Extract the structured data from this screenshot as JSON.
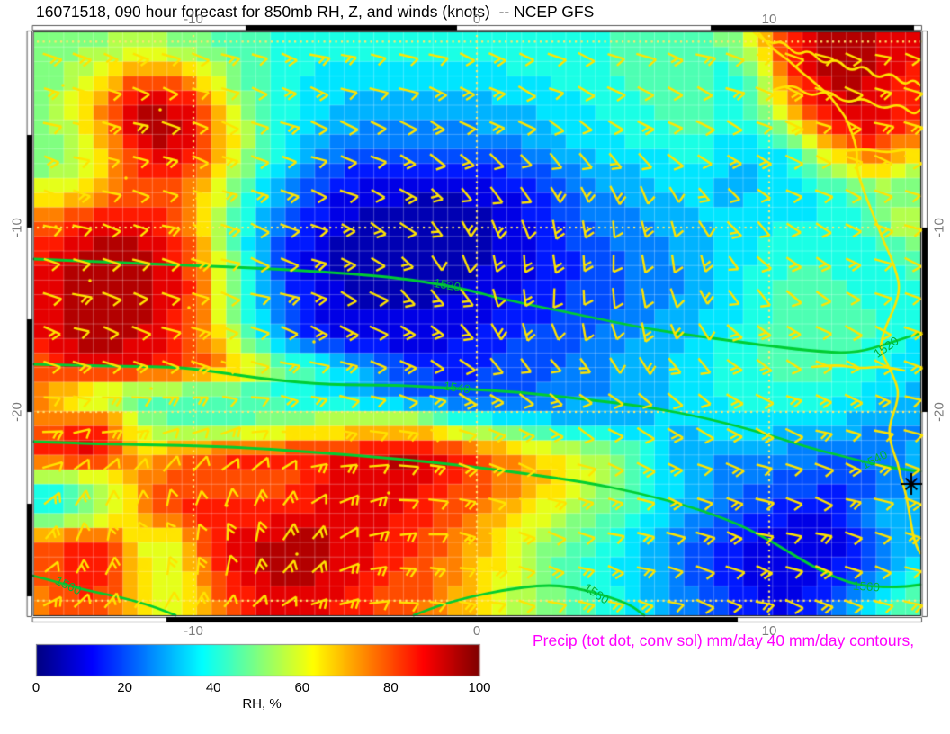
{
  "header": {
    "app": "GrADS-style forecast plot"
  },
  "caption": {
    "text": "Precip (tot dot, conv sol) mm/day 40 mm/day contours,",
    "color": "#ff00ff"
  },
  "colors": {
    "contour_green": "#00cd32",
    "contour_label_green": "#00b438",
    "coast_yellow": "#ffe400",
    "barb_yellow": "#ffe400",
    "gridline_dot": "#ffe670",
    "axis_label_gray": "#7a7a7a",
    "title_black": "#000000",
    "frame_black": "#000000",
    "marker_black": "#000000"
  },
  "chart_data": {
    "type": "heatmap",
    "title": "16071518, 090 hour forecast for 850mb RH, Z, and winds (knots)  -- NCEP GFS",
    "field": "850mb relative humidity",
    "overlays": [
      "geopotential height contours (m)",
      "wind barbs (knots)",
      "coastline",
      "precip contours"
    ],
    "lon_range": [
      -15.6,
      15.3
    ],
    "lat_range": [
      0.6,
      -31.0
    ],
    "x_ticks": [
      {
        "label": "-10",
        "f": 0.1797
      },
      {
        "label": "0",
        "f": 0.4995
      },
      {
        "label": "10",
        "f": 0.8294
      }
    ],
    "y_ticks": [
      {
        "label": "-10",
        "f": 0.3349
      },
      {
        "label": "-20",
        "f": 0.6512
      }
    ],
    "gridlines": {
      "x": [
        0.1797,
        0.4995,
        0.8294
      ],
      "y": [
        0.016,
        0.3349,
        0.6512,
        0.975
      ]
    },
    "rh_units": "%",
    "rh_level_step": 5,
    "rh_grid": [
      [
        48,
        50,
        52,
        54,
        52,
        50,
        46,
        43,
        41,
        40,
        40,
        40,
        41,
        41,
        41,
        41,
        40,
        40,
        41,
        42,
        44,
        45,
        46,
        48,
        65,
        85,
        92,
        95,
        92,
        88
      ],
      [
        50,
        56,
        66,
        78,
        76,
        66,
        52,
        44,
        40,
        37,
        35,
        35,
        35,
        35,
        35,
        36,
        37,
        39,
        40,
        42,
        44,
        46,
        48,
        38,
        50,
        78,
        92,
        95,
        92,
        86
      ],
      [
        52,
        62,
        78,
        92,
        94,
        86,
        62,
        48,
        40,
        35,
        32,
        30,
        30,
        30,
        30,
        31,
        32,
        34,
        37,
        39,
        42,
        44,
        46,
        40,
        48,
        70,
        88,
        93,
        90,
        84
      ],
      [
        50,
        58,
        74,
        93,
        95,
        88,
        68,
        50,
        38,
        32,
        27,
        25,
        25,
        25,
        25,
        27,
        29,
        32,
        35,
        37,
        40,
        42,
        44,
        36,
        40,
        48,
        70,
        85,
        88,
        80
      ],
      [
        48,
        55,
        68,
        84,
        89,
        84,
        64,
        46,
        34,
        26,
        20,
        17,
        15,
        15,
        15,
        17,
        21,
        25,
        29,
        32,
        34,
        36,
        38,
        32,
        33,
        35,
        50,
        65,
        72,
        60
      ],
      [
        62,
        66,
        72,
        80,
        80,
        72,
        54,
        38,
        27,
        18,
        11,
        9,
        8,
        8,
        8,
        10,
        14,
        19,
        24,
        27,
        30,
        32,
        34,
        30,
        32,
        35,
        38,
        42,
        48,
        45
      ],
      [
        78,
        86,
        90,
        88,
        82,
        70,
        50,
        34,
        21,
        13,
        8,
        6,
        5,
        5,
        5,
        7,
        11,
        16,
        21,
        24,
        27,
        30,
        32,
        34,
        36,
        38,
        36,
        40,
        45,
        60
      ],
      [
        86,
        93,
        95,
        95,
        90,
        76,
        52,
        32,
        18,
        10,
        5,
        4,
        4,
        4,
        5,
        7,
        10,
        14,
        18,
        21,
        24,
        27,
        31,
        34,
        38,
        42,
        40,
        38,
        42,
        45
      ],
      [
        88,
        95,
        95,
        95,
        92,
        80,
        56,
        34,
        19,
        10,
        6,
        5,
        4,
        5,
        7,
        9,
        12,
        15,
        18,
        20,
        23,
        26,
        30,
        34,
        39,
        44,
        46,
        42,
        40,
        42
      ],
      [
        90,
        95,
        95,
        95,
        90,
        78,
        56,
        36,
        21,
        12,
        8,
        7,
        7,
        8,
        10,
        12,
        15,
        17,
        20,
        22,
        25,
        28,
        31,
        35,
        40,
        45,
        48,
        45,
        42,
        40
      ],
      [
        88,
        94,
        95,
        92,
        88,
        80,
        60,
        42,
        25,
        15,
        10,
        9,
        9,
        10,
        12,
        15,
        18,
        20,
        22,
        25,
        28,
        30,
        34,
        38,
        42,
        46,
        48,
        46,
        42,
        38
      ],
      [
        80,
        88,
        90,
        88,
        85,
        80,
        74,
        62,
        50,
        44,
        35,
        28,
        20,
        16,
        16,
        18,
        20,
        22,
        25,
        28,
        30,
        32,
        36,
        40,
        42,
        44,
        44,
        42,
        38,
        34
      ],
      [
        72,
        58,
        48,
        44,
        43,
        42,
        42,
        41,
        38,
        36,
        32,
        28,
        22,
        19,
        18,
        20,
        22,
        24,
        26,
        28,
        30,
        32,
        35,
        38,
        40,
        41,
        40,
        38,
        35,
        31
      ],
      [
        76,
        84,
        80,
        58,
        46,
        45,
        46,
        50,
        55,
        58,
        60,
        63,
        65,
        58,
        48,
        42,
        38,
        35,
        33,
        32,
        33,
        33,
        34,
        35,
        35,
        34,
        32,
        30,
        28,
        27
      ],
      [
        85,
        90,
        88,
        70,
        74,
        80,
        84,
        86,
        85,
        86,
        88,
        92,
        94,
        92,
        85,
        78,
        72,
        65,
        58,
        52,
        45,
        30,
        28,
        27,
        26,
        25,
        24,
        22,
        24,
        28
      ],
      [
        42,
        45,
        55,
        72,
        80,
        82,
        78,
        76,
        80,
        86,
        90,
        92,
        90,
        88,
        82,
        78,
        74,
        68,
        60,
        52,
        44,
        36,
        30,
        26,
        22,
        20,
        19,
        18,
        22,
        26
      ],
      [
        40,
        46,
        56,
        70,
        80,
        86,
        86,
        84,
        86,
        89,
        91,
        90,
        86,
        82,
        78,
        72,
        66,
        58,
        52,
        46,
        40,
        33,
        27,
        22,
        17,
        14,
        12,
        16,
        30,
        32
      ],
      [
        80,
        85,
        82,
        62,
        56,
        76,
        90,
        94,
        95,
        95,
        92,
        88,
        84,
        80,
        74,
        66,
        58,
        50,
        44,
        40,
        34,
        27,
        21,
        16,
        11,
        9,
        8,
        12,
        20,
        30
      ],
      [
        80,
        88,
        84,
        66,
        56,
        70,
        86,
        92,
        95,
        94,
        90,
        86,
        82,
        78,
        72,
        64,
        56,
        48,
        43,
        38,
        33,
        26,
        20,
        14,
        10,
        8,
        9,
        15,
        26,
        36
      ],
      [
        76,
        82,
        80,
        68,
        58,
        68,
        80,
        88,
        91,
        89,
        86,
        82,
        80,
        76,
        70,
        62,
        55,
        49,
        44,
        39,
        34,
        28,
        22,
        17,
        13,
        12,
        16,
        26,
        36,
        46
      ]
    ],
    "contours": [
      {
        "value": 1520,
        "points": [
          [
            38,
            288
          ],
          [
            150,
            293
          ],
          [
            290,
            298
          ],
          [
            400,
            305
          ],
          [
            460,
            311
          ],
          [
            520,
            322
          ],
          [
            560,
            333
          ],
          [
            640,
            349
          ],
          [
            720,
            366
          ],
          [
            800,
            377
          ],
          [
            843,
            383
          ],
          [
            900,
            390
          ],
          [
            950,
            393
          ],
          [
            990,
            381
          ],
          [
            1023,
            370
          ]
        ],
        "labels": [
          {
            "x": 497,
            "y": 317,
            "rot": 10
          },
          {
            "x": 985,
            "y": 386,
            "rot": -35
          }
        ]
      },
      {
        "value": 1540,
        "points": [
          [
            38,
            405
          ],
          [
            120,
            407
          ],
          [
            200,
            408
          ],
          [
            250,
            415
          ],
          [
            300,
            422
          ],
          [
            366,
            428
          ],
          [
            440,
            428
          ],
          [
            508,
            432
          ],
          [
            580,
            436
          ],
          [
            650,
            444
          ],
          [
            720,
            452
          ],
          [
            790,
            466
          ],
          [
            850,
            482
          ],
          [
            900,
            498
          ],
          [
            940,
            508
          ],
          [
            975,
            517
          ],
          [
            1005,
            522
          ],
          [
            1023,
            524
          ]
        ],
        "labels": [
          {
            "x": 508,
            "y": 431,
            "rot": 8
          },
          {
            "x": 972,
            "y": 511,
            "rot": -27
          }
        ]
      },
      {
        "value": 1560,
        "points": [
          [
            38,
            491
          ],
          [
            120,
            494
          ],
          [
            200,
            495
          ],
          [
            280,
            498
          ],
          [
            366,
            504
          ],
          [
            440,
            510
          ],
          [
            510,
            517
          ],
          [
            580,
            526
          ],
          [
            650,
            536
          ],
          [
            710,
            548
          ],
          [
            770,
            564
          ],
          [
            820,
            582
          ],
          [
            860,
            603
          ],
          [
            900,
            628
          ],
          [
            935,
            645
          ],
          [
            963,
            652
          ],
          [
            1000,
            653
          ],
          [
            1023,
            650
          ]
        ],
        "labels": [
          {
            "x": 963,
            "y": 652,
            "rot": 4
          }
        ]
      },
      {
        "value": 1560,
        "points": [
          [
            36,
            640
          ],
          [
            60,
            646
          ],
          [
            90,
            655
          ],
          [
            120,
            661
          ],
          [
            150,
            668
          ],
          [
            175,
            676
          ],
          [
            195,
            684
          ]
        ],
        "labels": [
          {
            "x": 76,
            "y": 651,
            "rot": 26
          }
        ]
      },
      {
        "value": 1580,
        "points": [
          [
            460,
            684
          ],
          [
            485,
            674
          ],
          [
            520,
            664
          ],
          [
            560,
            656
          ],
          [
            605,
            650
          ],
          [
            640,
            653
          ],
          [
            675,
            663
          ],
          [
            700,
            672
          ],
          [
            716,
            684
          ]
        ],
        "labels": [
          {
            "x": 663,
            "y": 660,
            "rot": 34
          }
        ]
      }
    ],
    "coastline": [
      [
        843,
        36
      ],
      [
        852,
        47
      ],
      [
        862,
        57
      ],
      [
        877,
        67
      ],
      [
        890,
        80
      ],
      [
        900,
        87
      ],
      [
        912,
        98
      ],
      [
        923,
        107
      ],
      [
        932,
        120
      ],
      [
        940,
        130
      ],
      [
        946,
        145
      ],
      [
        950,
        157
      ],
      [
        953,
        170
      ],
      [
        952,
        187
      ],
      [
        957,
        203
      ],
      [
        963,
        220
      ],
      [
        970,
        237
      ],
      [
        976,
        252
      ],
      [
        983,
        270
      ],
      [
        990,
        285
      ],
      [
        997,
        305
      ],
      [
        1000,
        320
      ],
      [
        996,
        338
      ],
      [
        988,
        355
      ],
      [
        982,
        370
      ],
      [
        978,
        388
      ],
      [
        985,
        402
      ],
      [
        993,
        418
      ],
      [
        999,
        435
      ],
      [
        996,
        452
      ],
      [
        990,
        468
      ],
      [
        988,
        482
      ],
      [
        992,
        500
      ],
      [
        998,
        515
      ],
      [
        1001,
        530
      ],
      [
        1006,
        545
      ],
      [
        1009,
        560
      ],
      [
        1012,
        578
      ],
      [
        1015,
        595
      ],
      [
        1019,
        608
      ],
      [
        1023,
        615
      ]
    ],
    "land_lines": [
      [
        [
          838,
          36
        ],
        [
          855,
          50
        ],
        [
          870,
          45
        ],
        [
          885,
          62
        ],
        [
          900,
          55
        ],
        [
          915,
          72
        ],
        [
          930,
          65
        ],
        [
          945,
          80
        ],
        [
          960,
          72
        ],
        [
          975,
          88
        ],
        [
          990,
          80
        ],
        [
          1005,
          95
        ],
        [
          1015,
          88
        ],
        [
          1023,
          95
        ]
      ],
      [
        [
          860,
          100
        ],
        [
          880,
          92
        ],
        [
          900,
          108
        ],
        [
          920,
          100
        ],
        [
          940,
          115
        ],
        [
          960,
          108
        ],
        [
          980,
          122
        ],
        [
          1000,
          115
        ],
        [
          1015,
          128
        ],
        [
          1023,
          122
        ]
      ],
      [
        [
          935,
          168
        ],
        [
          960,
          165
        ],
        [
          985,
          170
        ],
        [
          1005,
          166
        ],
        [
          1023,
          168
        ]
      ],
      [
        [
          903,
          408
        ],
        [
          930,
          405
        ],
        [
          955,
          410
        ],
        [
          980,
          407
        ],
        [
          1005,
          412
        ]
      ]
    ],
    "precip_dots": [
      [
        70,
        95
      ],
      [
        178,
        122
      ],
      [
        140,
        198
      ],
      [
        62,
        252
      ],
      [
        100,
        312
      ],
      [
        210,
        342
      ],
      [
        349,
        380
      ],
      [
        168,
        432
      ],
      [
        252,
        562
      ],
      [
        432,
        548
      ],
      [
        330,
        616
      ],
      [
        522,
        600
      ]
    ],
    "marker": {
      "x": 1013,
      "y": 538,
      "type": "asterisk"
    },
    "wind_barbs": {
      "cols": 30,
      "rows": 17,
      "x0": 55,
      "y0": 62,
      "dx": 33,
      "dy": 38,
      "flow": {
        "base": 18,
        "down": {
          "cx": 660,
          "cy": 300,
          "sx": 190,
          "sy": 130,
          "amp": 75
        },
        "up": {
          "cx": 200,
          "cy": 600,
          "sx": 200,
          "sy": 110,
          "amp": -110
        }
      }
    },
    "colorbar": {
      "min": 0,
      "max": 100,
      "ticks": [
        "0",
        "20",
        "40",
        "60",
        "80",
        "100"
      ],
      "label": "RH, %",
      "colormap": "jet",
      "legend_position": "bottom"
    }
  }
}
